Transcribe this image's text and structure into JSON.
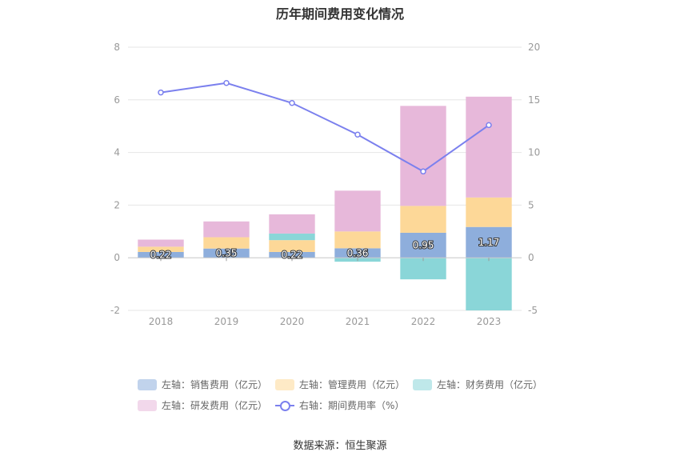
{
  "chart_data": {
    "type": "bar",
    "title": "历年期间费用变化情况",
    "categories": [
      "2018",
      "2019",
      "2020",
      "2021",
      "2022",
      "2023"
    ],
    "left_axis": {
      "ylim": [
        -2,
        8
      ],
      "ticks": [
        "-2",
        "0",
        "2",
        "4",
        "6",
        "8"
      ]
    },
    "right_axis": {
      "ylim": [
        -5,
        20
      ],
      "ticks": [
        "-5",
        "0",
        "5",
        "10",
        "15",
        "20"
      ]
    },
    "stacked": true,
    "grid": true,
    "legend_position": "bottom",
    "series": [
      {
        "name": "左轴：销售费用（亿元）",
        "type": "bar",
        "axis": "left",
        "color": "#8eaedc",
        "values": [
          0.22,
          0.35,
          0.22,
          0.36,
          0.95,
          1.17
        ],
        "labels": [
          "0.22",
          "0.35",
          "0.22",
          "0.36",
          "0.95",
          "1.17"
        ]
      },
      {
        "name": "左轴：管理费用（亿元）",
        "type": "bar",
        "axis": "left",
        "color": "#fdd898",
        "values": [
          0.2,
          0.43,
          0.45,
          0.64,
          1.02,
          1.12
        ]
      },
      {
        "name": "左轴：财务费用（亿元）",
        "type": "bar",
        "axis": "left",
        "color": "#8ad6d8",
        "values": [
          0.0,
          0.0,
          0.25,
          -0.15,
          -0.82,
          -2.0
        ]
      },
      {
        "name": "左轴：研发费用（亿元）",
        "type": "bar",
        "axis": "left",
        "color": "#e7b8da",
        "values": [
          0.27,
          0.6,
          0.73,
          1.55,
          3.8,
          3.83
        ]
      },
      {
        "name": "右轴：期间费用率（%）",
        "type": "line",
        "axis": "right",
        "color": "#7b80ee",
        "values": [
          15.7,
          16.6,
          14.7,
          11.7,
          8.2,
          12.6
        ]
      }
    ],
    "source": "数据来源：恒生聚源"
  }
}
